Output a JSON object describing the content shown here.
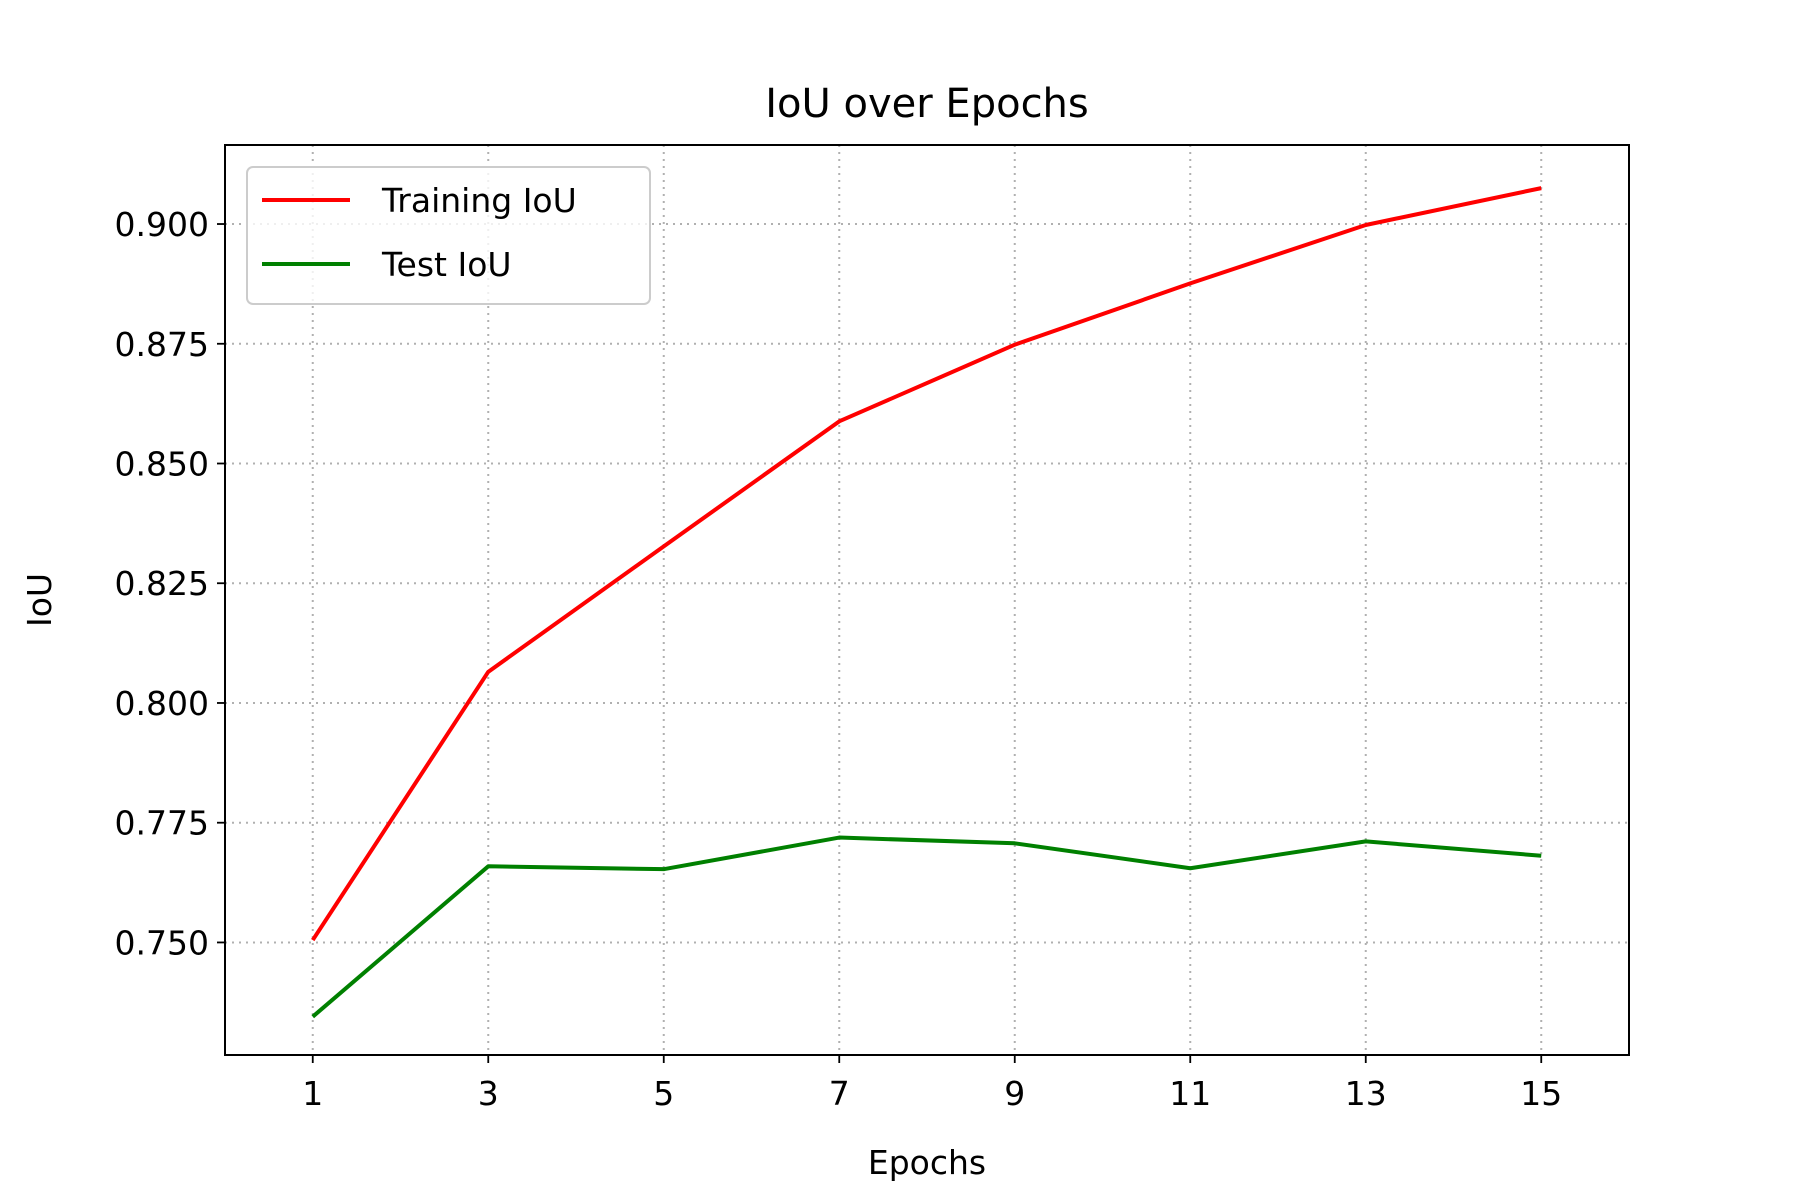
{
  "chart_data": {
    "type": "line",
    "title": "IoU over Epochs",
    "xlabel": "Epochs",
    "ylabel": "IoU",
    "x": [
      1,
      3,
      5,
      7,
      9,
      11,
      13,
      15
    ],
    "xlim": [
      0,
      16
    ],
    "ylim": [
      0.7265,
      0.9165
    ],
    "xticks": [
      1,
      3,
      5,
      7,
      9,
      11,
      13,
      15
    ],
    "xtick_labels": [
      "1",
      "3",
      "5",
      "7",
      "9",
      "11",
      "13",
      "15"
    ],
    "yticks": [
      0.75,
      0.775,
      0.8,
      0.825,
      0.85,
      0.875,
      0.9
    ],
    "ytick_labels": [
      "0.750",
      "0.775",
      "0.800",
      "0.825",
      "0.850",
      "0.875",
      "0.900"
    ],
    "grid": true,
    "legend_position": "upper left",
    "series": [
      {
        "name": "Training IoU",
        "color": "#ff0000",
        "values": [
          0.7505,
          0.8065,
          0.8327,
          0.8588,
          0.8748,
          0.8876,
          0.8998,
          0.9075
        ]
      },
      {
        "name": "Test IoU",
        "color": "#008000",
        "values": [
          0.7345,
          0.7659,
          0.7653,
          0.7719,
          0.7707,
          0.7655,
          0.7711,
          0.7681
        ]
      }
    ]
  }
}
